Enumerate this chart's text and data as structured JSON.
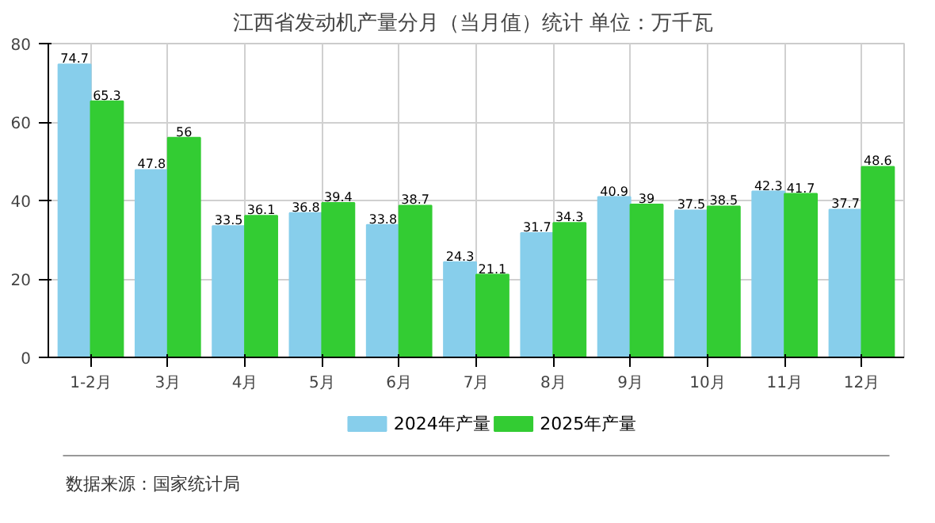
{
  "chart_data": {
    "type": "bar",
    "title": "江西省发动机产量分月（当月值）统计  单位：万千瓦",
    "categories": [
      "1-2月",
      "3月",
      "4月",
      "5月",
      "6月",
      "7月",
      "8月",
      "9月",
      "10月",
      "11月",
      "12月"
    ],
    "series": [
      {
        "name": "2024年产量",
        "color": "#87ceeb",
        "values": [
          74.7,
          47.8,
          33.5,
          36.8,
          33.8,
          24.3,
          31.7,
          40.9,
          37.5,
          42.3,
          37.7
        ]
      },
      {
        "name": "2025年产量",
        "color": "#33cc33",
        "values": [
          65.3,
          56,
          36.1,
          39.4,
          38.7,
          21.1,
          34.3,
          39,
          38.5,
          41.7,
          48.6
        ]
      }
    ],
    "ylim": [
      0,
      80
    ],
    "yticks": [
      0,
      20,
      40,
      60,
      80
    ],
    "grid": true,
    "legend": "bottom",
    "data_labels": true,
    "annotations": [
      "数据来源：国家统计局"
    ]
  }
}
